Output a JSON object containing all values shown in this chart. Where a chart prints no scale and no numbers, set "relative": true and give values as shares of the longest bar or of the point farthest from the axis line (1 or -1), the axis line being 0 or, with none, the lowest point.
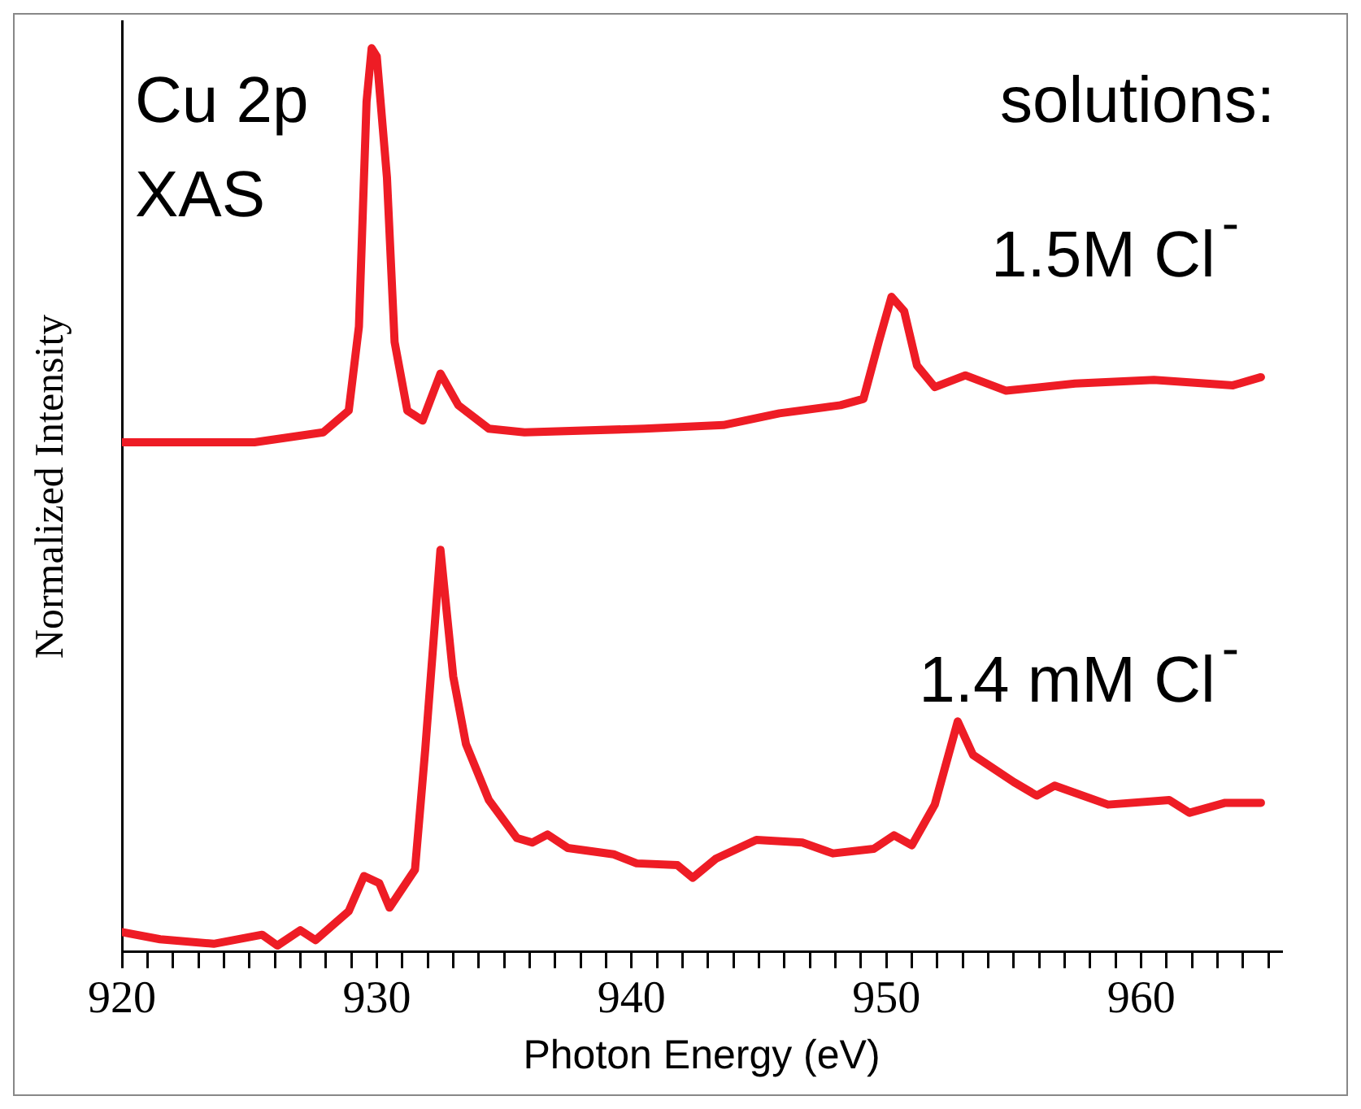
{
  "chart_data": {
    "type": "line",
    "relative": true,
    "xlabel": "Photon Energy (eV)",
    "ylabel": "Normalized Intensity",
    "annotations": [
      "Cu 2p",
      "XAS",
      "solutions:"
    ],
    "xlim": [
      920,
      965.5
    ],
    "xticks": [
      920,
      {
        "value": 921,
        "label": null
      },
      {
        "value": 922,
        "label": null
      },
      {
        "value": 923,
        "label": null
      },
      {
        "value": 924,
        "label": null
      },
      {
        "value": 925,
        "label": null
      },
      {
        "value": 926,
        "label": null
      },
      {
        "value": 927,
        "label": null
      },
      {
        "value": 928,
        "label": null
      },
      {
        "value": 929,
        "label": null
      },
      930,
      {
        "value": 931,
        "label": null
      },
      {
        "value": 932,
        "label": null
      },
      {
        "value": 933,
        "label": null
      },
      {
        "value": 934,
        "label": null
      },
      {
        "value": 935,
        "label": null
      },
      {
        "value": 936,
        "label": null
      },
      {
        "value": 937,
        "label": null
      },
      {
        "value": 938,
        "label": null
      },
      {
        "value": 939,
        "label": null
      },
      940,
      {
        "value": 941,
        "label": null
      },
      {
        "value": 942,
        "label": null
      },
      {
        "value": 943,
        "label": null
      },
      {
        "value": 944,
        "label": null
      },
      {
        "value": 945,
        "label": null
      },
      {
        "value": 946,
        "label": null
      },
      {
        "value": 947,
        "label": null
      },
      {
        "value": 948,
        "label": null
      },
      {
        "value": 949,
        "label": null
      },
      950,
      {
        "value": 951,
        "label": null
      },
      {
        "value": 952,
        "label": null
      },
      {
        "value": 953,
        "label": null
      },
      {
        "value": 954,
        "label": null
      },
      {
        "value": 955,
        "label": null
      },
      {
        "value": 956,
        "label": null
      },
      {
        "value": 957,
        "label": null
      },
      {
        "value": 958,
        "label": null
      },
      {
        "value": 959,
        "label": null
      },
      960,
      {
        "value": 961,
        "label": null
      },
      {
        "value": 962,
        "label": null
      },
      {
        "value": 963,
        "label": null
      },
      {
        "value": 964,
        "label": null
      },
      {
        "value": 965,
        "label": null
      }
    ],
    "legend": false,
    "grid": false,
    "marker": "none",
    "line_style": "solid",
    "series": [
      {
        "name": "1.5M Cl$^{-}$",
        "color": "#ee1c25",
        "x": [
          920,
          925.2,
          927.9,
          928.9,
          929.3,
          929.6,
          929.8,
          930.0,
          930.4,
          930.7,
          931.2,
          931.8,
          932.5,
          933.2,
          934.4,
          935.8,
          940.5,
          943.6,
          945.8,
          948.2,
          949.1,
          949.7,
          950.2,
          950.7,
          951.2,
          951.9,
          953.1,
          954.7,
          957.4,
          960.5,
          963.6,
          964.7
        ],
        "values": [
          0.564,
          0.564,
          0.575,
          0.599,
          0.692,
          0.941,
          1.0,
          0.991,
          0.857,
          0.675,
          0.599,
          0.588,
          0.64,
          0.605,
          0.579,
          0.575,
          0.579,
          0.583,
          0.596,
          0.605,
          0.612,
          0.675,
          0.725,
          0.709,
          0.649,
          0.625,
          0.638,
          0.621,
          0.629,
          0.633,
          0.627,
          0.636
        ]
      },
      {
        "name": "1.4 mM Cl$^{-}$",
        "color": "#ee1c25",
        "x": [
          920,
          921.5,
          923.6,
          925.5,
          926.1,
          927.0,
          927.6,
          928.9,
          929.5,
          930.1,
          930.5,
          931.5,
          931.9,
          932.5,
          933.0,
          933.5,
          934.4,
          935.5,
          936.1,
          936.7,
          937.5,
          939.3,
          940.2,
          941.8,
          942.4,
          943.3,
          944.9,
          946.7,
          947.9,
          949.5,
          950.3,
          951.0,
          951.9,
          952.8,
          953.4,
          955.0,
          955.9,
          956.6,
          958.7,
          961.1,
          961.9,
          963.3,
          964.7
        ],
        "values": [
          0.022,
          0.014,
          0.009,
          0.019,
          0.007,
          0.024,
          0.013,
          0.045,
          0.084,
          0.076,
          0.049,
          0.091,
          0.223,
          0.445,
          0.305,
          0.23,
          0.168,
          0.126,
          0.121,
          0.13,
          0.115,
          0.108,
          0.098,
          0.096,
          0.082,
          0.103,
          0.124,
          0.121,
          0.109,
          0.114,
          0.129,
          0.118,
          0.163,
          0.255,
          0.218,
          0.188,
          0.173,
          0.184,
          0.163,
          0.168,
          0.154,
          0.165,
          0.165
        ]
      }
    ]
  }
}
